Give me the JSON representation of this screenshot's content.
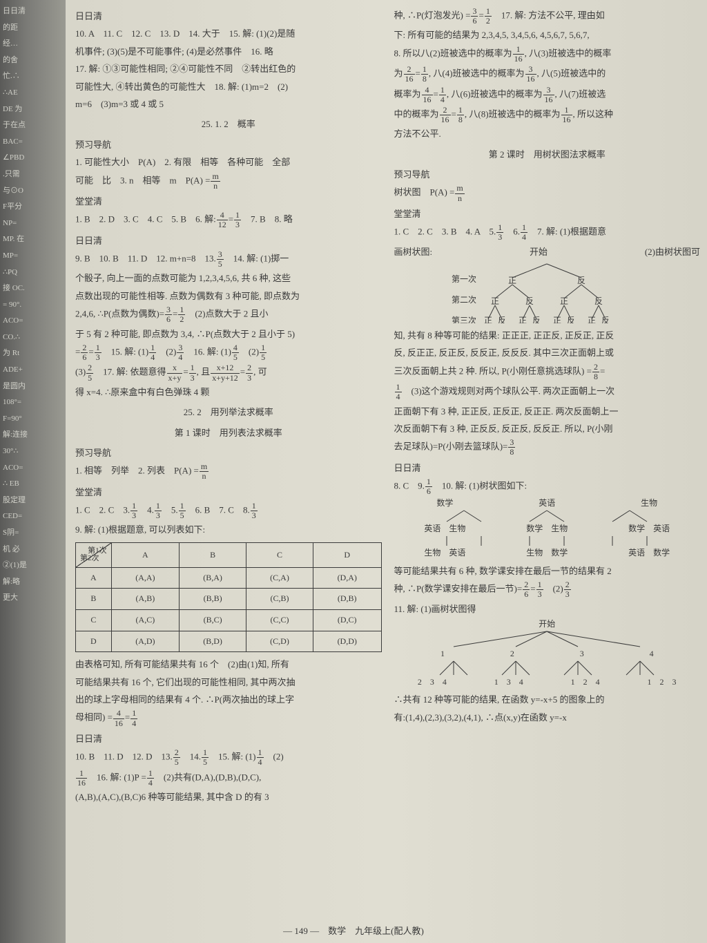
{
  "spine_fragments": [
    "日日清",
    "的距",
    "经…",
    "的舍",
    "忙.∴",
    "∴AE",
    "DE 为",
    "于在点",
    "BAC=",
    "∠PBD",
    ".只需",
    "与⊙O",
    "F平分",
    "NP=",
    "MP. 在",
    "MP=",
    "∴PQ",
    "接 OC.",
    "= 90°.",
    "ACO=",
    "CO.∴",
    "为 Rt",
    "ADE+",
    "是圆内",
    "108°=",
    "F=90°",
    "解:连接",
    "30°∴",
    "ACO=",
    "∴ EB",
    "股定理",
    "CED=",
    "S阴=",
    "机 必",
    "②(1)是",
    "解:略",
    "更大"
  ],
  "left": {
    "s1_h": "日日清",
    "s1_l1": "10. A　11. C　12. C　13. D　14. 大于　15. 解: (1)(2)是随",
    "s1_l2": "机事件; (3)(5)是不可能事件; (4)是必然事件　16. 略",
    "s1_l3": "17. 解: ①③可能性相同; ②④可能性不同　②转出红色的",
    "s1_l4": "可能性大, ④转出黄色的可能性大　18. 解: (1)m=2　(2)",
    "s1_l5": "m=6　(3)m=3 或 4 或 5",
    "h2512": "25. 1. 2　概率",
    "yx1": "预习导航",
    "yx1_l1_a": "1. 可能性大小　P(A)　2. 有限　相等　各种可能　全部",
    "yx1_l2_a": "可能　比　3. n　相等　m　P(A) =",
    "tt1": "堂堂清",
    "tt1_l1_a": "1. B　2. D　3. C　4. C　5. B　6. 解:",
    "tt1_l1_b": "　7. B　8. 略",
    "rrq1": "日日清",
    "rrq1_l1": "9. B　10. B　11. D　12. m+n=8　13.",
    "rrq1_l1b": "　14. 解: (1)掷一",
    "rrq1_l2": "个骰子, 向上一面的点数可能为 1,2,3,4,5,6, 共 6 种, 这些",
    "rrq1_l3": "点数出现的可能性相等. 点数为偶数有 3 种可能, 即点数为",
    "rrq1_l4a": "2,4,6, ∴P(点数为偶数)=",
    "rrq1_l4b": "　(2)点数大于 2 且小",
    "rrq1_l5": "于 5 有 2 种可能, 即点数为 3,4, ∴P(点数大于 2 且小于 5)",
    "rrq1_l6a": "=",
    "rrq1_l6b": "　15. 解: (1)",
    "rrq1_l6c": "　(2)",
    "rrq1_l6d": "　16. 解: (1)",
    "rrq1_l6e": "　(2)",
    "rrq1_l7a": "(3)",
    "rrq1_l7b": "　17. 解: 依题意得",
    "rrq1_l7c": ", 且",
    "rrq1_l7d": ", 可",
    "rrq1_l8": "得 x=4. ∴原来盒中有白色弹珠 4 颗",
    "h252": "25. 2　用列举法求概率",
    "h252_1": "第 1 课时　用列表法求概率",
    "yx2": "预习导航",
    "yx2_l1": "1. 相等　列举　2. 列表　P(A) =",
    "tt2": "堂堂清",
    "tt2_l1_a": "1. C　2. C　3.",
    "tt2_l1_b": "　4.",
    "tt2_l1_c": "　5.",
    "tt2_l1_d": "　6. B　7. C　8.",
    "tt2_l2": "9. 解: (1)根据题意, 可以列表如下:",
    "table": {
      "h1": "第1次",
      "h2": "第2次",
      "cols": [
        "A",
        "B",
        "C",
        "D"
      ],
      "rows_h": [
        "A",
        "B",
        "C",
        "D"
      ],
      "cells": [
        [
          "(A,A)",
          "(B,A)",
          "(C,A)",
          "(D,A)"
        ],
        [
          "(A,B)",
          "(B,B)",
          "(C,B)",
          "(D,B)"
        ],
        [
          "(A,C)",
          "(B,C)",
          "(C,C)",
          "(D,C)"
        ],
        [
          "(A,D)",
          "(B,D)",
          "(C,D)",
          "(D,D)"
        ]
      ]
    },
    "aftbl_1": "由表格可知, 所有可能结果共有 16 个　(2)由(1)知, 所有",
    "aftbl_2": "可能结果共有 16 个, 它们出现的可能性相同, 其中两次抽",
    "aftbl_3": "出的球上字母相同的结果有 4 个. ∴P(两次抽出的球上字",
    "aftbl_4a": "母相同) =",
    "rrq2": "日日清",
    "rrq2_l1a": "10. B　11. D　12. D　13.",
    "rrq2_l1b": "　14.",
    "rrq2_l1c": "　15. 解: (1)",
    "rrq2_l1d": "　(2)",
    "rrq2_l2a": "　16. 解: (1)P =",
    "rrq2_l2b": "　(2)共有(D,A),(D,B),(D,C),",
    "rrq2_l3": "(A,B),(A,C),(B,C)6 种等可能结果, 其中含 D 的有 3"
  },
  "right": {
    "l1a": "种, ∴P(灯泡发光) =",
    "l1b": "　17. 解: 方法不公平, 理由如",
    "l2": "下: 所有可能的结果为 2,3,4,5, 3,4,5,6, 4,5,6,7, 5,6,7,",
    "l3a": "8. 所以八(2)班被选中的概率为",
    "l3b": ", 八(3)班被选中的概率",
    "l4a": "为",
    "l4b": ", 八(4)班被选中的概率为",
    "l4c": ", 八(5)班被选中的",
    "l5a": "概率为",
    "l5b": ", 八(6)班被选中的概率为",
    "l5c": ", 八(7)班被选",
    "l6a": "中的概率为",
    "l6b": ", 八(8)班被选中的概率为",
    "l6c": ", 所以这种",
    "l7": "方法不公平.",
    "h2": "第 2 课时　用树状图法求概率",
    "yx": "预习导航",
    "yx_l1": "树状图　P(A) =",
    "tt": "堂堂清",
    "tt_l1a": "1. C　2. C　3. B　4. A　5.",
    "tt_l1b": "　6.",
    "tt_l1c": "　7. 解: (1)根据题意",
    "tt_l2a": "画树状图:",
    "tt_l2b": "(2)由树状图可",
    "tree_root": "开始",
    "tree_r1a": "第一次",
    "tree_r1v": [
      "正",
      "反"
    ],
    "tree_r2a": "第二次",
    "tree_r2v": [
      "正",
      "反",
      "正",
      "反"
    ],
    "tree_r3a": "第三次",
    "tree_r3v": [
      "正反正反正反正反"
    ],
    "p1": "知, 共有 8 种等可能的结果: 正正正, 正正反, 正反正, 正反",
    "p2": "反, 反正正, 反正反, 反反正, 反反反. 其中三次正面朝上或",
    "p3a": "三次反面朝上共 2 种. 所以, P(小刚任意挑选球队) =",
    "p3b": "=",
    "p4a": "　(3)这个游戏规则对两个球队公平. 两次正面朝上一次",
    "p5": "正面朝下有 3 种, 正正反, 正反正, 反正正. 两次反面朝上一",
    "p6": "次反面朝下有 3 种, 正反反, 反正反, 反反正. 所以, P(小刚",
    "p7a": "去足球队)=P(小刚去篮球队)=",
    "rrq": "日日清",
    "rrq_l1a": "8. C　9.",
    "rrq_l1b": "　10. 解: (1)树状图如下:",
    "sub_tree_top": [
      "数学",
      "英语",
      "生物"
    ],
    "sub_tree_mid": [
      "英语　生物",
      "数学　生物",
      "数学　英语"
    ],
    "sub_tree_bot": [
      "生物　英语",
      "生物　数学",
      "英语　数学"
    ],
    "st1": "等可能结果共有 6 种, 数学课安排在最后一节的结果有 2",
    "st2a": "种, ∴P(数学课安排在最后一节)=",
    "st2b": "　(2)",
    "q11": "11. 解: (1)画树状图得",
    "bt_root": "开始",
    "bt_r1": [
      "1",
      "2",
      "3",
      "4"
    ],
    "bt_r2": [
      "2　3　4",
      "1　3　4",
      "1　2　4",
      "1　2　3"
    ],
    "bt1": "∴共有 12 种等可能的结果, 在函数 y=-x+5 的图象上的",
    "bt2": "有:(1,4),(2,3),(3,2),(4,1), ∴点(x,y)在函数 y=-x"
  },
  "footer": "— 149 —　数学　九年级上(配人教)"
}
